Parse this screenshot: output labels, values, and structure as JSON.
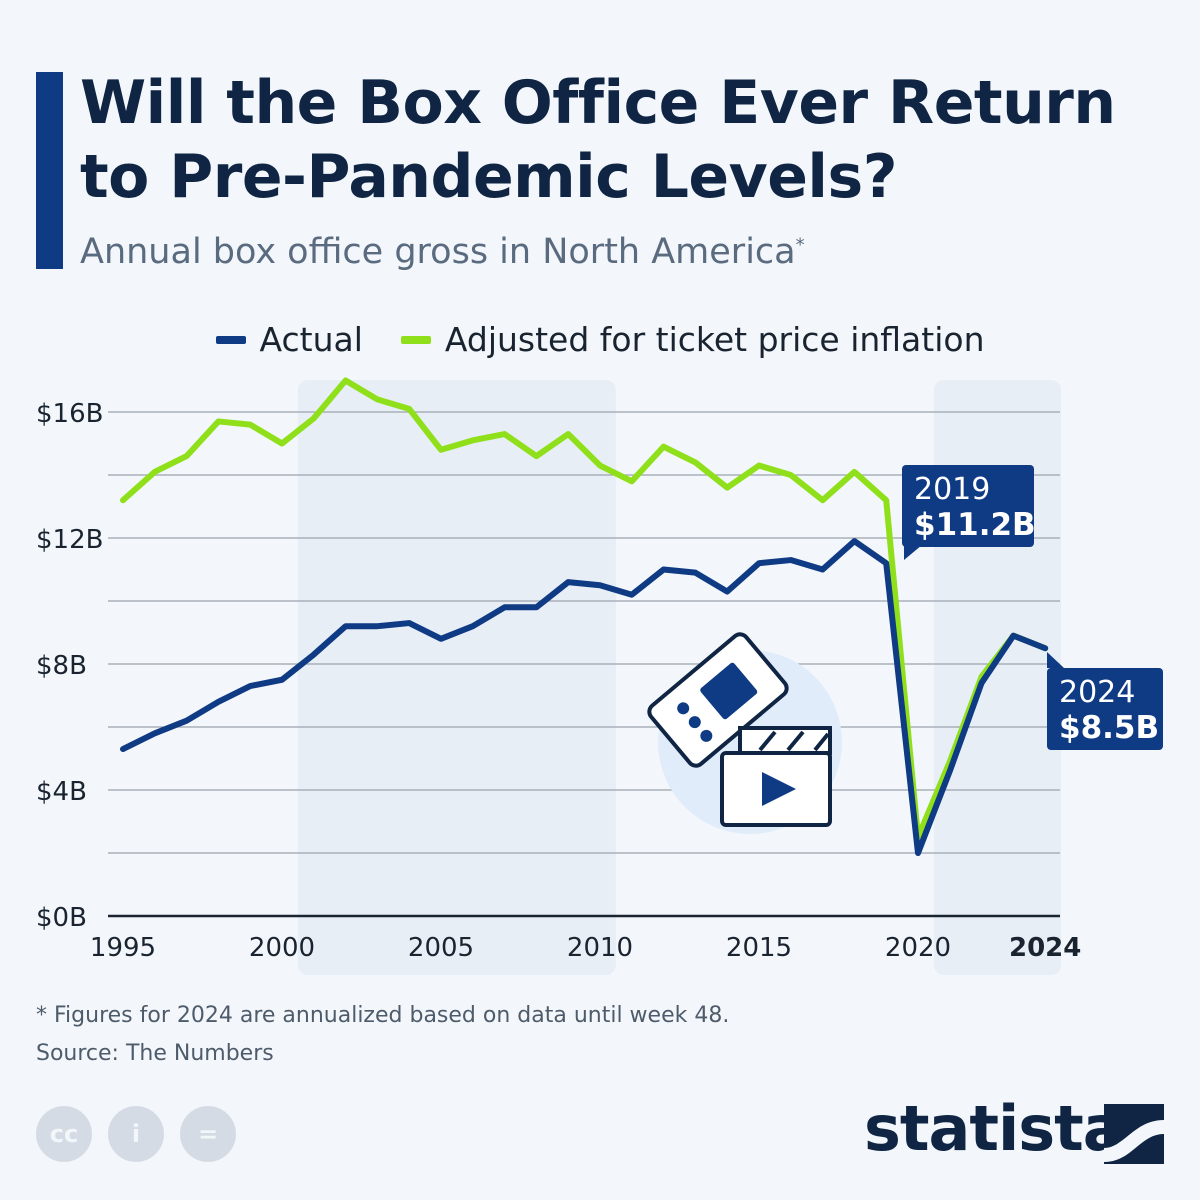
{
  "header": {
    "title_line1": "Will the Box Office Ever Return",
    "title_line2": "to Pre-Pandemic Levels?",
    "subtitle": "Annual box office gross in North America",
    "subtitle_mark": "*"
  },
  "chart_data": {
    "type": "line",
    "title": "Will the Box Office Ever Return to Pre-Pandemic Levels?",
    "subtitle": "Annual box office gross in North America*",
    "x": [
      1995,
      1996,
      1997,
      1998,
      1999,
      2000,
      2001,
      2002,
      2003,
      2004,
      2005,
      2006,
      2007,
      2008,
      2009,
      2010,
      2011,
      2012,
      2013,
      2014,
      2015,
      2016,
      2017,
      2018,
      2019,
      2020,
      2021,
      2022,
      2023,
      2024
    ],
    "series": [
      {
        "name": "Actual",
        "color": "#0f3a84",
        "values": [
          5.3,
          5.8,
          6.2,
          6.8,
          7.3,
          7.5,
          8.3,
          9.2,
          9.2,
          9.3,
          8.8,
          9.2,
          9.8,
          9.8,
          10.6,
          10.5,
          10.2,
          11.0,
          10.9,
          10.3,
          11.2,
          11.3,
          11.0,
          11.9,
          11.2,
          2.0,
          4.6,
          7.4,
          8.9,
          8.5
        ]
      },
      {
        "name": "Adjusted for ticket price inflation",
        "color": "#8fe01b",
        "values": [
          13.2,
          14.1,
          14.6,
          15.7,
          15.6,
          15.0,
          15.8,
          17.0,
          16.4,
          16.1,
          14.8,
          15.1,
          15.3,
          14.6,
          15.3,
          14.3,
          13.8,
          14.9,
          14.4,
          13.6,
          14.3,
          14.0,
          13.2,
          14.1,
          13.2,
          2.5,
          4.9,
          7.6,
          8.9,
          8.5
        ]
      }
    ],
    "ylim": [
      0,
      16
    ],
    "yticks": [
      {
        "v": 0,
        "label": "$0B"
      },
      {
        "v": 4,
        "label": "$4B"
      },
      {
        "v": 8,
        "label": "$8B"
      },
      {
        "v": 12,
        "label": "$12B"
      },
      {
        "v": 16,
        "label": "$16B"
      }
    ],
    "ygrid": [
      0,
      2,
      4,
      6,
      8,
      10,
      12,
      14,
      16
    ],
    "xticks": [
      {
        "v": 1995,
        "label": "1995"
      },
      {
        "v": 2000,
        "label": "2000"
      },
      {
        "v": 2005,
        "label": "2005"
      },
      {
        "v": 2010,
        "label": "2010"
      },
      {
        "v": 2015,
        "label": "2015"
      },
      {
        "v": 2020,
        "label": "2020"
      },
      {
        "v": 2024,
        "label": "2024",
        "bold": true
      }
    ],
    "shaded_ranges": [
      [
        2000.5,
        2010.5
      ],
      [
        2020.5,
        2024.5
      ]
    ],
    "annotations": [
      {
        "x": 2019,
        "year": "2019",
        "value": "$11.2B"
      },
      {
        "x": 2024,
        "year": "2024",
        "value": "$8.5B"
      }
    ],
    "legend_position": "top-center",
    "grid": true
  },
  "footer": {
    "note": "* Figures for 2024 are annualized based on data until week 48.",
    "source": "Source: The Numbers",
    "logo": "statista"
  },
  "icons": [
    "cc-icon",
    "attribution-icon",
    "no-derivatives-icon",
    "ticket-icon",
    "clapperboard-icon"
  ]
}
